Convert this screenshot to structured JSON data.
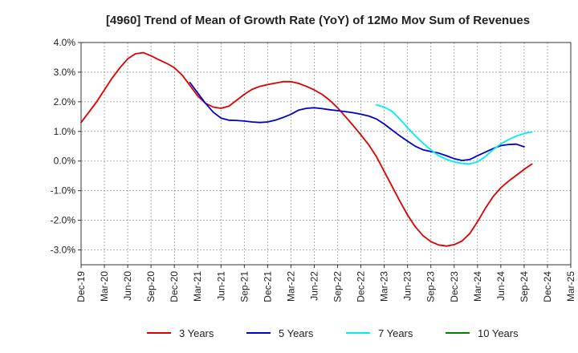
{
  "chart_data": {
    "type": "line",
    "title": "[4960]  Trend of Mean of Growth Rate (YoY) of 12Mo Mov Sum of Revenues",
    "xlabel": "",
    "ylabel": "",
    "ylim": [
      -3.5,
      4.0
    ],
    "xlim": [
      0,
      63
    ],
    "grid": true,
    "legend_position": "bottom",
    "y_ticks": [
      {
        "v": 4.0,
        "label": "4.0%"
      },
      {
        "v": 3.0,
        "label": "3.0%"
      },
      {
        "v": 2.0,
        "label": "2.0%"
      },
      {
        "v": 1.0,
        "label": "1.0%"
      },
      {
        "v": 0.0,
        "label": "0.0%"
      },
      {
        "v": -1.0,
        "label": "-1.0%"
      },
      {
        "v": -2.0,
        "label": "-2.0%"
      },
      {
        "v": -3.0,
        "label": "-3.0%"
      }
    ],
    "x_ticks": [
      {
        "i": 0,
        "label": "Dec-19"
      },
      {
        "i": 3,
        "label": "Mar-20"
      },
      {
        "i": 6,
        "label": "Jun-20"
      },
      {
        "i": 9,
        "label": "Sep-20"
      },
      {
        "i": 12,
        "label": "Dec-20"
      },
      {
        "i": 15,
        "label": "Mar-21"
      },
      {
        "i": 18,
        "label": "Jun-21"
      },
      {
        "i": 21,
        "label": "Sep-21"
      },
      {
        "i": 24,
        "label": "Dec-21"
      },
      {
        "i": 27,
        "label": "Mar-22"
      },
      {
        "i": 30,
        "label": "Jun-22"
      },
      {
        "i": 33,
        "label": "Sep-22"
      },
      {
        "i": 36,
        "label": "Dec-22"
      },
      {
        "i": 39,
        "label": "Mar-23"
      },
      {
        "i": 42,
        "label": "Jun-23"
      },
      {
        "i": 45,
        "label": "Sep-23"
      },
      {
        "i": 48,
        "label": "Dec-23"
      },
      {
        "i": 51,
        "label": "Mar-24"
      },
      {
        "i": 54,
        "label": "Jun-24"
      },
      {
        "i": 57,
        "label": "Sep-24"
      },
      {
        "i": 60,
        "label": "Dec-24"
      },
      {
        "i": 63,
        "label": "Mar-25"
      }
    ],
    "series": [
      {
        "name": "3 Years",
        "color": "#dd0000",
        "start_index": 0,
        "values": [
          1.3,
          1.65,
          2.0,
          2.4,
          2.8,
          3.15,
          3.45,
          3.62,
          3.66,
          3.55,
          3.42,
          3.3,
          3.15,
          2.9,
          2.55,
          2.2,
          1.95,
          1.82,
          1.78,
          1.85,
          2.05,
          2.25,
          2.42,
          2.52,
          2.58,
          2.63,
          2.68,
          2.68,
          2.62,
          2.52,
          2.4,
          2.25,
          2.05,
          1.8,
          1.5,
          1.2,
          0.88,
          0.55,
          0.15,
          -0.35,
          -0.85,
          -1.35,
          -1.82,
          -2.22,
          -2.52,
          -2.72,
          -2.83,
          -2.87,
          -2.82,
          -2.7,
          -2.45,
          -2.05,
          -1.6,
          -1.2,
          -0.9,
          -0.68,
          -0.48,
          -0.28,
          -0.1
        ]
      },
      {
        "name": "5 Years",
        "color": "#0000cc",
        "start_index": 14,
        "values": [
          2.65,
          2.3,
          1.95,
          1.65,
          1.45,
          1.38,
          1.37,
          1.35,
          1.32,
          1.3,
          1.32,
          1.38,
          1.47,
          1.58,
          1.72,
          1.78,
          1.8,
          1.77,
          1.73,
          1.7,
          1.67,
          1.63,
          1.58,
          1.52,
          1.42,
          1.25,
          1.05,
          0.85,
          0.67,
          0.5,
          0.38,
          0.32,
          0.27,
          0.18,
          0.08,
          0.02,
          0.05,
          0.18,
          0.3,
          0.42,
          0.52,
          0.56,
          0.57,
          0.48
        ]
      },
      {
        "name": "7 Years",
        "color": "#00eeee",
        "start_index": 38,
        "values": [
          1.9,
          1.82,
          1.68,
          1.42,
          1.12,
          0.85,
          0.6,
          0.38,
          0.18,
          0.06,
          -0.03,
          -0.08,
          -0.1,
          -0.03,
          0.15,
          0.38,
          0.58,
          0.72,
          0.84,
          0.93,
          0.98
        ]
      },
      {
        "name": "10 Years",
        "color": "#008000",
        "start_index": 0,
        "values": []
      }
    ]
  }
}
